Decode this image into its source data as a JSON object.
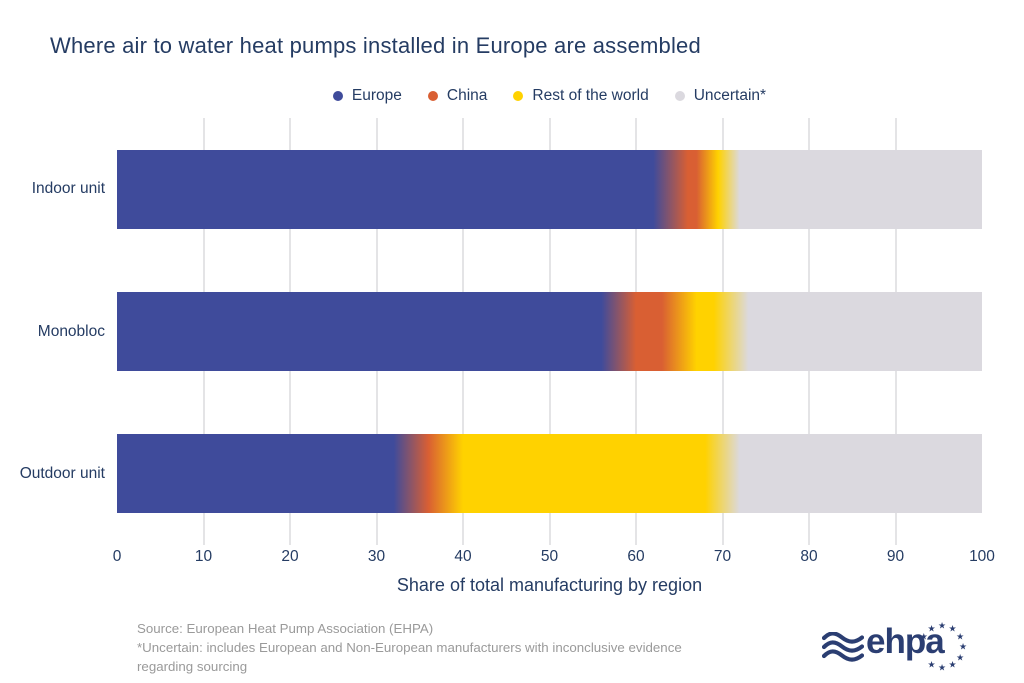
{
  "title": "Where air to water heat pumps installed in Europe are assembled",
  "legend": [
    {
      "label": "Europe",
      "color": "#3F4B9B"
    },
    {
      "label": "China",
      "color": "#D95F33"
    },
    {
      "label": "Rest of the world",
      "color": "#FFD200"
    },
    {
      "label": "Uncertain*",
      "color": "#DBD9DF"
    }
  ],
  "chart_data": {
    "type": "bar",
    "orientation": "horizontal",
    "stacked": true,
    "title": "Where air to water heat pumps installed in Europe are assembled",
    "categories": [
      "Indoor unit",
      "Monobloc",
      "Outdoor unit"
    ],
    "series": [
      {
        "name": "Europe",
        "color": "#3F4B9B",
        "values": [
          64,
          58,
          34
        ]
      },
      {
        "name": "China",
        "color": "#D95F33",
        "values": [
          5,
          7,
          4
        ]
      },
      {
        "name": "Rest of the world",
        "color": "#FFD200",
        "values": [
          1,
          6,
          32
        ]
      },
      {
        "name": "Uncertain*",
        "color": "#DBD9DF",
        "values": [
          30,
          29,
          30
        ]
      }
    ],
    "xlabel": "Share of total manufacturing by region",
    "ylabel": "",
    "xlim": [
      0,
      100
    ],
    "xticks": [
      0,
      10,
      20,
      30,
      40,
      50,
      60,
      70,
      80,
      90,
      100
    ],
    "grid": true,
    "gridline_ticks": [
      10,
      20,
      30,
      40,
      50,
      60,
      70,
      80,
      90
    ],
    "legend_position": "top",
    "segment_blend_percent": 2
  },
  "footer": {
    "line1": "Source: European Heat Pump Association (EHPA)",
    "line2": "*Uncertain: includes European and Non-European manufacturers with inconclusive evidence",
    "line3": "regarding sourcing"
  },
  "logo": {
    "text": "ehpa"
  },
  "colors": {
    "text_navy": "#253C63",
    "footer_gray": "#9A9A9A",
    "gridline": "#E4E4E6",
    "logo_navy": "#2B3E72",
    "background": "#FFFFFF"
  }
}
